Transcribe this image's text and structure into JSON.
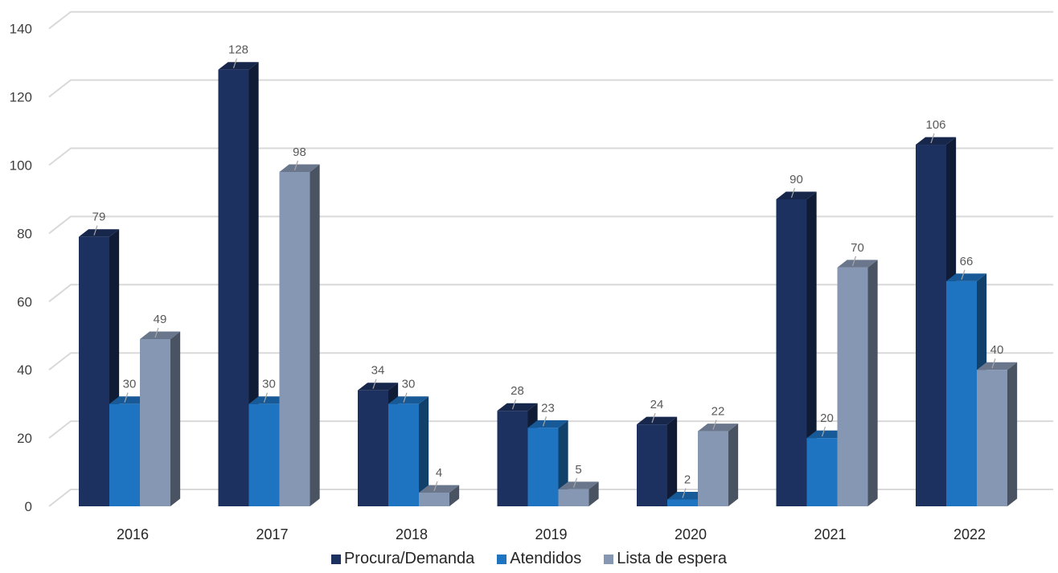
{
  "chart_data": {
    "type": "bar",
    "title": "",
    "xlabel": "",
    "ylabel": "",
    "categories": [
      "2016",
      "2017",
      "2018",
      "2019",
      "2020",
      "2021",
      "2022"
    ],
    "series": [
      {
        "name": "Procura/Demanda",
        "values": [
          79,
          128,
          34,
          28,
          24,
          90,
          106
        ],
        "color": "#1d3160"
      },
      {
        "name": "Atendidos",
        "values": [
          30,
          30,
          30,
          23,
          2,
          20,
          66
        ],
        "color": "#1f74c2"
      },
      {
        "name": "Lista de espera",
        "values": [
          49,
          98,
          4,
          5,
          22,
          70,
          40
        ],
        "color": "#8697b3"
      }
    ],
    "ylim": [
      0,
      140
    ],
    "yticks": [
      0,
      20,
      40,
      60,
      80,
      100,
      120,
      140
    ],
    "grid": true,
    "legend_position": "bottom",
    "style": "3d-column"
  }
}
